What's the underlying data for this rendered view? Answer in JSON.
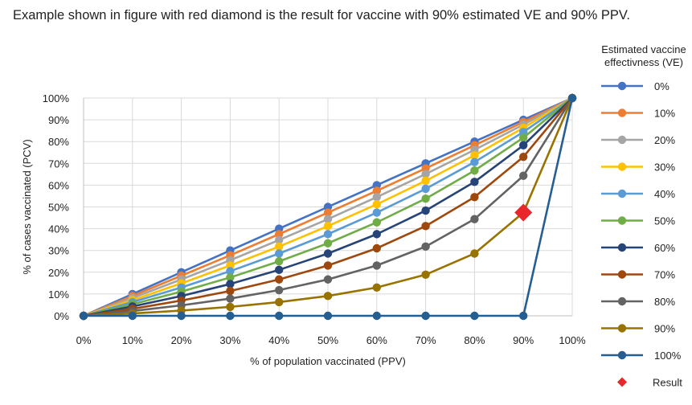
{
  "headline": "Example shown in figure with red diamond is the result for vaccine with 90% estimated VE and 90% PPV.",
  "chart_data": {
    "type": "line",
    "title": "",
    "xlabel": "% of population vaccinated (PPV)",
    "ylabel": "% of cases vaccinated (PCV)",
    "xlim": [
      0,
      100
    ],
    "ylim": [
      0,
      100
    ],
    "grid": true,
    "x": [
      0,
      10,
      20,
      30,
      40,
      50,
      60,
      70,
      80,
      90,
      100
    ],
    "x_tick_labels": [
      "0%",
      "10%",
      "20%",
      "30%",
      "40%",
      "50%",
      "60%",
      "70%",
      "80%",
      "90%",
      "100%"
    ],
    "y_tick_labels": [
      "0%",
      "10%",
      "20%",
      "30%",
      "40%",
      "50%",
      "60%",
      "70%",
      "80%",
      "90%",
      "100%"
    ],
    "y_ticks": [
      0,
      10,
      20,
      30,
      40,
      50,
      60,
      70,
      80,
      90,
      100
    ],
    "legend_title": "Estimated vaccine effectivness (VE)",
    "legend_position": "right",
    "series": [
      {
        "name": "0%",
        "color": "#4472C4",
        "values": [
          0,
          10,
          20,
          30,
          40,
          50,
          60,
          70,
          80,
          90,
          100
        ]
      },
      {
        "name": "10%",
        "color": "#ED7D31",
        "values": [
          0,
          9.1,
          18.4,
          27.8,
          37.5,
          47.4,
          57.4,
          67.7,
          78.3,
          89.0,
          100
        ]
      },
      {
        "name": "20%",
        "color": "#A5A5A5",
        "values": [
          0,
          8.2,
          16.7,
          25.5,
          34.8,
          44.4,
          54.5,
          65.1,
          76.2,
          87.8,
          100
        ]
      },
      {
        "name": "30%",
        "color": "#FFC000",
        "values": [
          0,
          7.2,
          14.9,
          23.1,
          31.8,
          41.2,
          51.2,
          62.0,
          73.7,
          86.3,
          100
        ]
      },
      {
        "name": "40%",
        "color": "#5B9BD5",
        "values": [
          0,
          6.3,
          13.0,
          20.5,
          28.6,
          37.5,
          47.4,
          58.3,
          70.6,
          84.4,
          100
        ]
      },
      {
        "name": "50%",
        "color": "#70AD47",
        "values": [
          0,
          5.3,
          11.1,
          17.6,
          25.0,
          33.3,
          42.9,
          53.8,
          66.7,
          81.8,
          100
        ]
      },
      {
        "name": "60%",
        "color": "#264478",
        "values": [
          0,
          4.3,
          9.1,
          14.6,
          21.1,
          28.6,
          37.5,
          48.3,
          61.5,
          78.3,
          100
        ]
      },
      {
        "name": "70%",
        "color": "#9E480E",
        "values": [
          0,
          3.2,
          7.0,
          11.4,
          16.7,
          23.1,
          31.0,
          41.2,
          54.5,
          73.0,
          100
        ]
      },
      {
        "name": "80%",
        "color": "#636363",
        "values": [
          0,
          2.2,
          4.8,
          7.9,
          11.8,
          16.7,
          23.1,
          31.8,
          44.4,
          64.3,
          100
        ]
      },
      {
        "name": "90%",
        "color": "#997300",
        "values": [
          0,
          1.1,
          2.4,
          4.1,
          6.3,
          9.1,
          13.0,
          18.9,
          28.6,
          47.4,
          100
        ]
      },
      {
        "name": "100%",
        "color": "#255E91",
        "values": [
          0,
          0,
          0,
          0,
          0,
          0,
          0,
          0,
          0,
          0,
          100
        ]
      }
    ],
    "annotations": [
      {
        "name": "Result",
        "shape": "diamond",
        "color": "#E8262B",
        "x": 90,
        "y": 47.4
      }
    ]
  }
}
